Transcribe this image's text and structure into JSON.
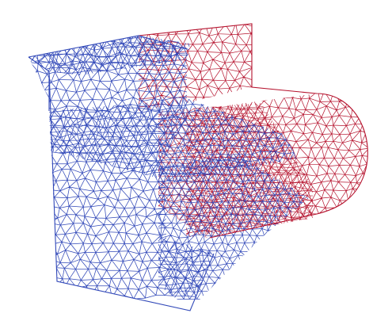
{
  "colors": {
    "background": "#ffffff",
    "mesh_part_a": "#b5122d",
    "mesh_part_b": "#3148b8"
  }
}
